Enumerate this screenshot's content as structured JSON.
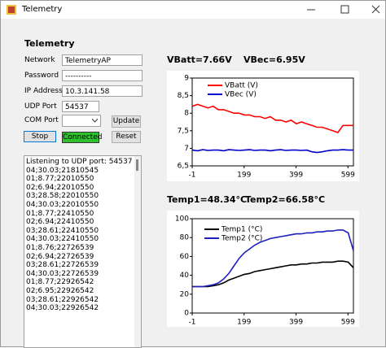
{
  "window": {
    "title": "Telemetry"
  },
  "form": {
    "heading": "Telemetry",
    "fields": [
      {
        "label": "Network",
        "value": "TelemetryAP"
      },
      {
        "label": "Password",
        "value": "----------"
      },
      {
        "label": "IP Address",
        "value": "10.3.141.58"
      },
      {
        "label": "UDP Port",
        "value": "54537"
      }
    ],
    "com_port_label": "COM Port",
    "buttons": {
      "stop": "Stop",
      "update": "Update",
      "reset": "Reset"
    },
    "status": "Connected"
  },
  "log": [
    "Listening to UDP port: 54537",
    "04;30.03;21810545",
    "01;8.77;22010550",
    "02;6.94;22010550",
    "03;28.58;22010550",
    "04;30.03;22010550",
    "01;8.77;22410550",
    "02;6.94;22410550",
    "03;28.61;22410550",
    "04;30.03;22410550",
    "01;8.76;22726539",
    "02;6.94;22726539",
    "03;28.61;22726539",
    "04;30.03;22726539",
    "01;8.77;22926542",
    "02;6.95;22926542",
    "03;28.61;22926542",
    "04;30.03;22926542"
  ],
  "readouts": [
    "VBatt=7.66V",
    "VBec=6.95V",
    "Temp1=48.34°C",
    "Temp2=66.58°C"
  ],
  "chart_data": [
    {
      "type": "line",
      "legend": "top",
      "x": [
        0,
        20,
        40,
        60,
        80,
        100,
        120,
        140,
        160,
        180,
        200,
        220,
        240,
        260,
        280,
        300,
        320,
        340,
        360,
        380,
        400,
        420,
        440,
        460,
        480,
        500,
        520,
        540,
        560,
        580,
        600,
        620
      ],
      "series": [
        {
          "name": "VBatt (V)",
          "color": "#ff0000",
          "values": [
            8.2,
            8.25,
            8.2,
            8.15,
            8.2,
            8.1,
            8.1,
            8.05,
            8.0,
            8.0,
            7.95,
            7.95,
            7.9,
            7.9,
            7.85,
            7.9,
            7.8,
            7.8,
            7.75,
            7.8,
            7.7,
            7.75,
            7.7,
            7.65,
            7.6,
            7.6,
            7.55,
            7.5,
            7.45,
            7.65,
            7.65,
            7.65
          ]
        },
        {
          "name": "VBec (V)",
          "color": "#0000cc",
          "values": [
            6.95,
            6.93,
            6.96,
            6.94,
            6.95,
            6.95,
            6.93,
            6.96,
            6.95,
            6.94,
            6.95,
            6.96,
            6.94,
            6.95,
            6.95,
            6.93,
            6.95,
            6.96,
            6.94,
            6.95,
            6.95,
            6.94,
            6.95,
            6.9,
            6.88,
            6.9,
            6.93,
            6.95,
            6.95,
            6.96,
            6.95,
            6.95
          ]
        }
      ],
      "xlim": [
        -1,
        620
      ],
      "ylim": [
        6.5,
        9
      ],
      "xticks": [
        -1,
        199,
        399,
        599
      ],
      "yticks": [
        {
          "value": 6.5,
          "label": "6,5"
        },
        7,
        {
          "value": 7.5,
          "label": "7,5"
        },
        8,
        {
          "value": 8.5,
          "label": "8,5"
        },
        9
      ]
    },
    {
      "type": "line",
      "legend": "top",
      "x": [
        0,
        20,
        40,
        60,
        80,
        100,
        120,
        140,
        160,
        180,
        200,
        220,
        240,
        260,
        280,
        300,
        320,
        340,
        360,
        380,
        400,
        420,
        440,
        460,
        480,
        500,
        520,
        540,
        560,
        580,
        600,
        620
      ],
      "series": [
        {
          "name": "Temp1 (°C)",
          "color": "#000000",
          "values": [
            28,
            28,
            28,
            28,
            29,
            30,
            32,
            35,
            37,
            39,
            41,
            42,
            44,
            45,
            46,
            47,
            48,
            49,
            50,
            51,
            51,
            52,
            52,
            53,
            53,
            54,
            54,
            54,
            55,
            55,
            54,
            48
          ]
        },
        {
          "name": "Temp2 (°C)",
          "color": "#1f1fbf",
          "values": [
            28,
            28,
            28,
            29,
            30,
            32,
            36,
            42,
            50,
            58,
            64,
            68,
            72,
            75,
            77,
            79,
            80,
            81,
            82,
            83,
            84,
            84,
            85,
            85,
            86,
            86,
            87,
            87,
            88,
            88,
            85,
            66
          ]
        }
      ],
      "xlim": [
        -1,
        620
      ],
      "ylim": [
        0,
        100
      ],
      "xticks": [
        -1,
        199,
        399,
        599
      ],
      "yticks": [
        0,
        20,
        40,
        60,
        80,
        100
      ]
    }
  ]
}
